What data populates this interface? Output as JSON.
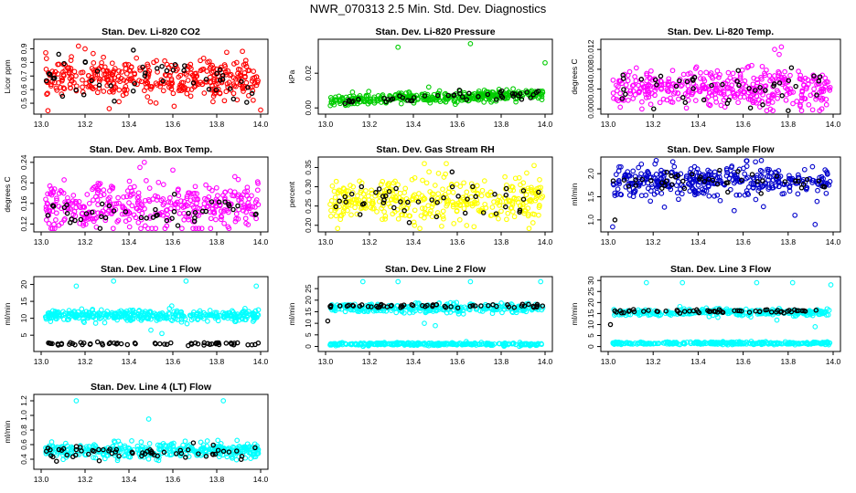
{
  "title": "NWR_070313  2.5 Min. Std. Dev. Diagnostics",
  "colors": {
    "red": "#ff0000",
    "green": "#00cc00",
    "magenta": "#ff00ff",
    "yellow": "#ffff00",
    "blue": "#0000cc",
    "cyan": "#00ffff",
    "black": "#000000"
  },
  "chart_data": [
    {
      "type": "scatter",
      "title": "Stan. Dev. Li-820 CO2",
      "ylabel": "Licor ppm",
      "xlim": [
        13.0,
        14.0
      ],
      "ylim": [
        0.44,
        0.95
      ],
      "xticks": [
        "13.0",
        "13.2",
        "13.4",
        "13.6",
        "13.8",
        "14.0"
      ],
      "yticks": [
        "0.5",
        "0.6",
        "0.7",
        "0.8",
        "0.9"
      ],
      "series": [
        {
          "name": "all",
          "color": "red",
          "mean": 0.68,
          "spread": 0.07,
          "n": 380,
          "outliers": [
            [
              13.17,
              0.92
            ],
            [
              13.2,
              0.9
            ],
            [
              13.31,
              0.46
            ],
            [
              14.0,
              0.45
            ]
          ]
        },
        {
          "name": "black",
          "color": "black",
          "mean": 0.66,
          "spread": 0.06,
          "n": 45,
          "outliers": [
            [
              13.08,
              0.86
            ],
            [
              13.42,
              0.89
            ]
          ]
        }
      ]
    },
    {
      "type": "scatter",
      "title": "Stan. Dev. Li-820 Pressure",
      "ylabel": "kPa",
      "xlim": [
        13.0,
        14.0
      ],
      "ylim": [
        -0.002,
        0.038
      ],
      "xticks": [
        "13.0",
        "13.2",
        "13.4",
        "13.6",
        "13.8",
        "14.0"
      ],
      "yticks": [
        "0.00",
        "0.02"
      ],
      "series": [
        {
          "name": "all",
          "color": "green",
          "mean": 0.004,
          "trend": 0.004,
          "spread": 0.0015,
          "n": 380,
          "outliers": [
            [
              13.33,
              0.035
            ],
            [
              13.66,
              0.037
            ],
            [
              14.0,
              0.026
            ],
            [
              13.47,
              0.012
            ]
          ]
        },
        {
          "name": "black",
          "color": "black",
          "mean": 0.004,
          "trend": 0.004,
          "spread": 0.0015,
          "n": 45,
          "outliers": []
        }
      ]
    },
    {
      "type": "scatter",
      "title": "Stan. Dev. Li-820 Temp.",
      "ylabel": "degrees C",
      "xlim": [
        13.0,
        14.0
      ],
      "ylim": [
        -0.0005,
        0.0135
      ],
      "xticks": [
        "13.0",
        "13.2",
        "13.4",
        "13.6",
        "13.8",
        "14.0"
      ],
      "yticks": [
        "0.000",
        "0.004",
        "0.008",
        "0.012"
      ],
      "series": [
        {
          "name": "all",
          "color": "magenta",
          "mean": 0.004,
          "spread": 0.002,
          "n": 380,
          "outliers": [
            [
              13.74,
              0.012
            ],
            [
              13.77,
              0.0125
            ],
            [
              13.76,
              0.011
            ]
          ]
        },
        {
          "name": "black",
          "color": "black",
          "mean": 0.004,
          "spread": 0.002,
          "n": 45,
          "outliers": []
        }
      ]
    },
    {
      "type": "scatter",
      "title": "Stan. Dev. Amb. Box Temp.",
      "ylabel": "degrees C",
      "xlim": [
        13.0,
        14.0
      ],
      "ylim": [
        0.11,
        0.245
      ],
      "xticks": [
        "13.0",
        "13.2",
        "13.4",
        "13.6",
        "13.8",
        "14.0"
      ],
      "yticks": [
        "0.12",
        "0.16",
        "0.20",
        "0.24"
      ],
      "series": [
        {
          "name": "all",
          "color": "magenta",
          "mean": 0.155,
          "spread": 0.022,
          "n": 380,
          "outliers": [
            [
              13.47,
              0.24
            ],
            [
              13.45,
              0.23
            ],
            [
              13.6,
              0.225
            ]
          ]
        },
        {
          "name": "black",
          "color": "black",
          "mean": 0.14,
          "spread": 0.014,
          "n": 45,
          "outliers": []
        }
      ]
    },
    {
      "type": "scatter",
      "title": "Stan. Dev. Gas Stream RH",
      "ylabel": "percent",
      "xlim": [
        13.0,
        14.0
      ],
      "ylim": [
        0.19,
        0.37
      ],
      "xticks": [
        "13.0",
        "13.2",
        "13.4",
        "13.6",
        "13.8",
        "14.0"
      ],
      "yticks": [
        "0.20",
        "0.25",
        "0.30",
        "0.35"
      ],
      "series": [
        {
          "name": "all",
          "color": "yellow",
          "mean": 0.26,
          "spread": 0.03,
          "n": 380,
          "outliers": [
            [
              13.45,
              0.36
            ],
            [
              13.95,
              0.355
            ],
            [
              13.55,
              0.36
            ]
          ]
        },
        {
          "name": "black",
          "color": "black",
          "mean": 0.26,
          "spread": 0.025,
          "n": 45,
          "outliers": []
        }
      ]
    },
    {
      "type": "scatter",
      "title": "Stan. Dev. Sample Flow",
      "ylabel": "ml/min",
      "xlim": [
        13.0,
        14.0
      ],
      "ylim": [
        0.8,
        2.3
      ],
      "xticks": [
        "13.0",
        "13.2",
        "13.4",
        "13.6",
        "13.8",
        "14.0"
      ],
      "yticks": [
        "1.0",
        "1.5",
        "2.0"
      ],
      "series": [
        {
          "name": "all",
          "color": "blue",
          "mean": 1.85,
          "spread": 0.17,
          "n": 380,
          "outliers": [
            [
              13.02,
              0.85
            ],
            [
              13.92,
              0.9
            ],
            [
              13.83,
              1.1
            ],
            [
              13.56,
              1.2
            ]
          ]
        },
        {
          "name": "black",
          "color": "black",
          "mean": 1.85,
          "spread": 0.12,
          "n": 45,
          "outliers": [
            [
              13.03,
              1.0
            ]
          ]
        }
      ]
    },
    {
      "type": "scatter",
      "title": "Stan. Dev. Line 1 Flow",
      "ylabel": "ml/min",
      "xlim": [
        13.0,
        14.0
      ],
      "ylim": [
        1,
        21.5
      ],
      "xticks": [
        "13.0",
        "13.2",
        "13.4",
        "13.6",
        "13.8",
        "14.0"
      ],
      "yticks": [
        "5",
        "10",
        "15",
        "20"
      ],
      "series": [
        {
          "name": "cyan",
          "color": "cyan",
          "mean": 10.8,
          "spread": 0.8,
          "n": 380,
          "outliers": [
            [
              13.16,
              19.5
            ],
            [
              13.33,
              21
            ],
            [
              13.66,
              21
            ],
            [
              13.98,
              19.5
            ],
            [
              13.5,
              6.5
            ],
            [
              13.55,
              5.5
            ]
          ]
        },
        {
          "name": "black",
          "color": "black",
          "mean": 2.5,
          "spread": 0.25,
          "n": 60,
          "outliers": []
        }
      ]
    },
    {
      "type": "scatter",
      "title": "Stan. Dev. Line 2 Flow",
      "ylabel": "ml/min",
      "xlim": [
        13.0,
        14.0
      ],
      "ylim": [
        -1,
        29
      ],
      "xticks": [
        "13.0",
        "13.2",
        "13.4",
        "13.6",
        "13.8",
        "14.0"
      ],
      "yticks": [
        "0",
        "5",
        "10",
        "15",
        "20",
        "25"
      ],
      "series": [
        {
          "name": "cyan",
          "color": "cyan",
          "mean": 16.5,
          "spread": 1.0,
          "n": 300,
          "outliers": [
            [
              13.17,
              28
            ],
            [
              13.33,
              28
            ],
            [
              13.66,
              28
            ],
            [
              13.98,
              28
            ],
            [
              13.5,
              9
            ],
            [
              13.45,
              10
            ]
          ]
        },
        {
          "name": "cyan-low",
          "color": "cyan",
          "mean": 1.0,
          "spread": 0.3,
          "n": 300,
          "outliers": []
        },
        {
          "name": "black",
          "color": "black",
          "mean": 17.5,
          "spread": 0.4,
          "n": 60,
          "outliers": [
            [
              13.01,
              11
            ]
          ]
        }
      ]
    },
    {
      "type": "scatter",
      "title": "Stan. Dev. Line 3 Flow",
      "ylabel": "ml/min",
      "xlim": [
        13.0,
        14.0
      ],
      "ylim": [
        -1,
        30.5
      ],
      "xticks": [
        "13.0",
        "13.2",
        "13.4",
        "13.6",
        "13.8",
        "14.0"
      ],
      "yticks": [
        "0",
        "5",
        "10",
        "15",
        "20",
        "25",
        "30"
      ],
      "series": [
        {
          "name": "cyan",
          "color": "cyan",
          "mean": 15.5,
          "spread": 0.8,
          "n": 300,
          "outliers": [
            [
              13.17,
              29
            ],
            [
              13.33,
              29
            ],
            [
              13.66,
              29
            ],
            [
              13.82,
              29
            ],
            [
              13.99,
              28
            ],
            [
              13.75,
              12
            ],
            [
              13.92,
              9
            ]
          ]
        },
        {
          "name": "cyan-low",
          "color": "cyan",
          "mean": 1.5,
          "spread": 0.3,
          "n": 300,
          "outliers": []
        },
        {
          "name": "black",
          "color": "black",
          "mean": 16.0,
          "spread": 0.4,
          "n": 60,
          "outliers": [
            [
              13.01,
              10
            ]
          ]
        }
      ]
    },
    {
      "type": "scatter",
      "title": "Stan. Dev. Line 4 (LT) Flow",
      "ylabel": "ml/min",
      "xlim": [
        13.0,
        14.0
      ],
      "ylim": [
        0.3,
        1.25
      ],
      "xticks": [
        "13.0",
        "13.2",
        "13.4",
        "13.6",
        "13.8",
        "14.0"
      ],
      "yticks": [
        "0.4",
        "0.6",
        "0.8",
        "1.0",
        "1.2"
      ],
      "series": [
        {
          "name": "cyan",
          "color": "cyan",
          "mean": 0.52,
          "spread": 0.05,
          "n": 380,
          "outliers": [
            [
              13.16,
              1.2
            ],
            [
              13.83,
              1.2
            ],
            [
              13.49,
              0.95
            ]
          ]
        },
        {
          "name": "black",
          "color": "black",
          "mean": 0.5,
          "spread": 0.05,
          "n": 60,
          "outliers": []
        }
      ]
    }
  ]
}
